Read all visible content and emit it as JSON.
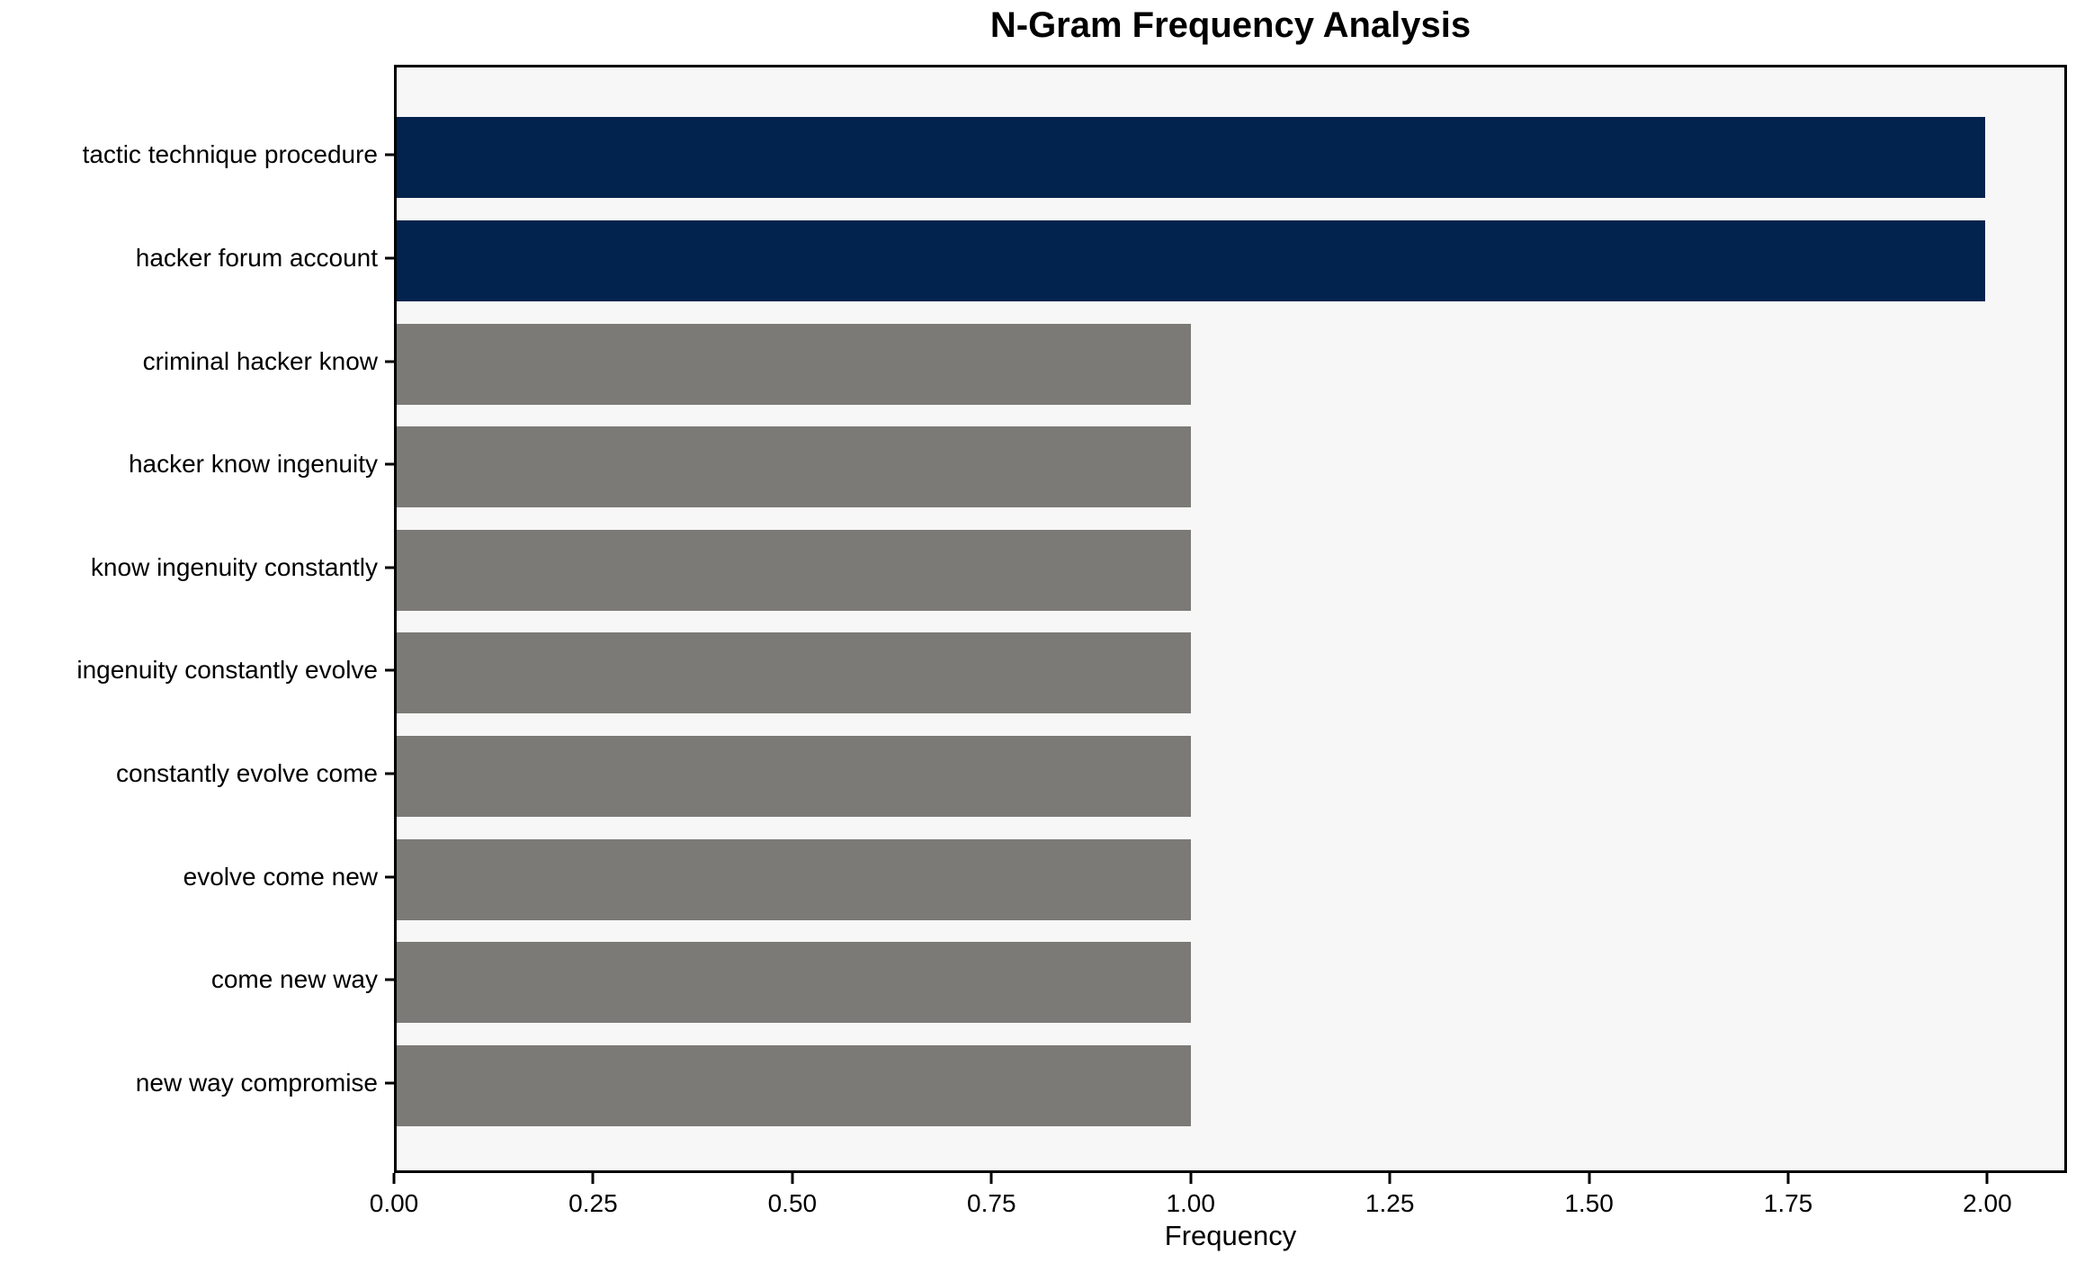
{
  "chart_data": {
    "type": "bar",
    "orientation": "horizontal",
    "title": "N-Gram Frequency Analysis",
    "xlabel": "Frequency",
    "ylabel": "",
    "categories": [
      "tactic technique procedure",
      "hacker forum account",
      "criminal hacker know",
      "hacker know ingenuity",
      "know ingenuity constantly",
      "ingenuity constantly evolve",
      "constantly evolve come",
      "evolve come new",
      "come new way",
      "new way compromise"
    ],
    "values": [
      2,
      2,
      1,
      1,
      1,
      1,
      1,
      1,
      1,
      1
    ],
    "bar_colors": [
      "#02234D",
      "#02234D",
      "#7B7A77",
      "#7B7A77",
      "#7B7A77",
      "#7B7A77",
      "#7B7A77",
      "#7B7A77",
      "#7B7A77",
      "#7B7A77"
    ],
    "xlim": [
      0,
      2.1
    ],
    "xticks": [
      0,
      0.25,
      0.5,
      0.75,
      1.0,
      1.25,
      1.5,
      1.75,
      2.0
    ],
    "xtick_labels": [
      "0.00",
      "0.25",
      "0.50",
      "0.75",
      "1.00",
      "1.25",
      "1.50",
      "1.75",
      "2.00"
    ],
    "grid": false,
    "legend": "none",
    "colors": {
      "highlight_bar": "#02234D",
      "default_bar": "#7B7A77",
      "plot_background": "#F7F7F7",
      "figure_background": "#FFFFFF",
      "spine": "#000000",
      "text": "#000000"
    }
  }
}
